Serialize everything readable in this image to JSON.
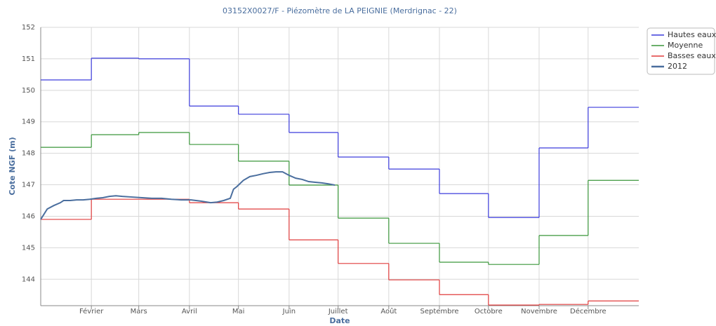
{
  "chart_data": {
    "type": "line",
    "title": "03152X0027/F - Piézomètre de LA PEIGNIE (Merdrignac - 22)",
    "xlabel": "Date",
    "ylabel": "Cote NGF (m)",
    "xlim": [
      0,
      366
    ],
    "xticks": [
      {
        "value": 31,
        "label": "Février"
      },
      {
        "value": 60,
        "label": "Mars"
      },
      {
        "value": 91,
        "label": "Avril"
      },
      {
        "value": 121,
        "label": "Mai"
      },
      {
        "value": 152,
        "label": "Juin"
      },
      {
        "value": 182,
        "label": "Juillet"
      },
      {
        "value": 213,
        "label": "Août"
      },
      {
        "value": 244,
        "label": "Septembre"
      },
      {
        "value": 274,
        "label": "Octobre"
      },
      {
        "value": 305,
        "label": "Novembre"
      },
      {
        "value": 335,
        "label": "Décembre"
      }
    ],
    "ylim": [
      143.16,
      152
    ],
    "yticks": [
      144,
      145,
      146,
      147,
      148,
      149,
      150,
      151,
      152
    ],
    "grid": true,
    "legend": "upper right",
    "series": [
      {
        "name": "Hautes eaux",
        "color": "#3c3cdc",
        "step": true,
        "x": [
          0,
          31,
          60,
          91,
          121,
          152,
          182,
          213,
          244,
          274,
          305,
          335
        ],
        "values": [
          150.33,
          151.02,
          151.0,
          149.5,
          149.24,
          148.66,
          147.88,
          147.5,
          146.72,
          145.96,
          148.17,
          149.46
        ]
      },
      {
        "name": "Moyenne",
        "color": "#3a963a",
        "step": true,
        "x": [
          0,
          31,
          60,
          91,
          121,
          152,
          182,
          213,
          244,
          274,
          305,
          335
        ],
        "values": [
          148.19,
          148.59,
          148.66,
          148.28,
          147.75,
          146.99,
          145.94,
          145.14,
          144.54,
          144.47,
          145.39,
          147.14
        ]
      },
      {
        "name": "Basses eaux",
        "color": "#e03c3c",
        "step": true,
        "x": [
          0,
          31,
          60,
          91,
          121,
          152,
          182,
          213,
          244,
          274,
          305,
          335
        ],
        "values": [
          145.9,
          146.54,
          146.54,
          146.43,
          146.23,
          145.25,
          144.5,
          143.98,
          143.51,
          143.18,
          143.2,
          143.31
        ]
      },
      {
        "name": "2012",
        "color": "#4a6e9e",
        "step": false,
        "x": [
          0,
          4,
          8,
          12,
          14,
          18,
          22,
          26,
          30,
          34,
          38,
          42,
          46,
          50,
          56,
          62,
          68,
          74,
          80,
          86,
          92,
          98,
          104,
          108,
          112,
          116,
          118,
          120,
          124,
          128,
          132,
          136,
          140,
          144,
          148,
          152,
          156,
          160,
          164,
          168,
          172,
          176,
          180
        ],
        "values": [
          145.9,
          146.23,
          146.34,
          146.43,
          146.5,
          146.5,
          146.52,
          146.52,
          146.54,
          146.57,
          146.59,
          146.63,
          146.65,
          146.63,
          146.61,
          146.59,
          146.57,
          146.57,
          146.54,
          146.52,
          146.52,
          146.48,
          146.43,
          146.45,
          146.5,
          146.57,
          146.86,
          146.94,
          147.14,
          147.26,
          147.3,
          147.35,
          147.39,
          147.41,
          147.41,
          147.3,
          147.21,
          147.17,
          147.1,
          147.08,
          147.06,
          147.03,
          146.99
        ]
      }
    ]
  }
}
